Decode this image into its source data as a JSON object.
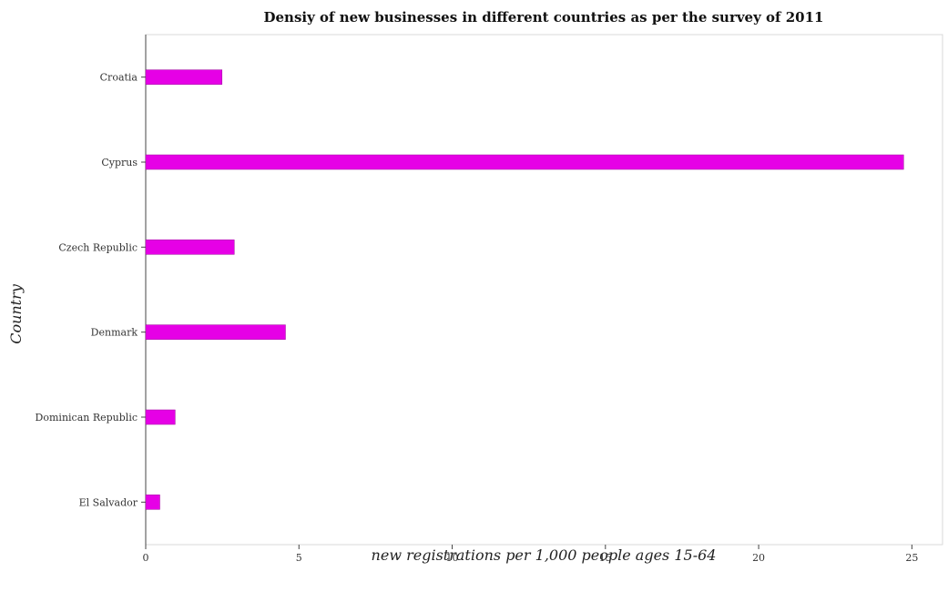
{
  "chart_data": {
    "type": "bar",
    "orientation": "horizontal",
    "title": "Densiy of new businesses in different countries as per the survey of 2011",
    "xlabel": "new registrations per 1,000 people ages 15-64",
    "ylabel": "Country",
    "categories": [
      "Croatia",
      "Cyprus",
      "Czech Republic",
      "Denmark",
      "Dominican Republic",
      "El Salvador"
    ],
    "values": [
      2.49,
      24.73,
      2.89,
      4.56,
      0.96,
      0.46
    ],
    "xlim": [
      0,
      26
    ],
    "xticks": [
      0,
      5,
      10,
      15,
      20,
      25
    ],
    "bar_color": "#e600e6",
    "grid": false,
    "legend": "none"
  }
}
